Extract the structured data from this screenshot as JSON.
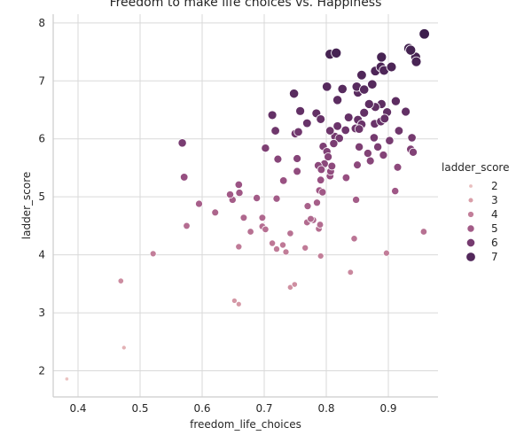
{
  "chart_data": {
    "type": "scatter",
    "title": "Freedom to make life choices vs. Happiness",
    "xlabel": "freedom_life_choices",
    "ylabel": "ladder_score",
    "xlim": [
      0.36,
      0.98
    ],
    "ylim": [
      1.55,
      8.15
    ],
    "xticks": [
      "0.4",
      "0.5",
      "0.6",
      "0.7",
      "0.8",
      "0.9"
    ],
    "yticks": [
      "2",
      "3",
      "4",
      "5",
      "6",
      "7",
      "8"
    ],
    "grid": true,
    "hue": "ladder_score",
    "size": "ladder_score",
    "legend": {
      "title": "ladder_score",
      "placement": "right",
      "entries": [
        "2",
        "3",
        "4",
        "5",
        "6",
        "7"
      ]
    },
    "points": [
      [
        0.382,
        1.86
      ],
      [
        0.474,
        2.4
      ],
      [
        0.469,
        3.55
      ],
      [
        0.521,
        4.02
      ],
      [
        0.652,
        3.21
      ],
      [
        0.659,
        3.15
      ],
      [
        0.742,
        3.44
      ],
      [
        0.749,
        3.49
      ],
      [
        0.839,
        3.7
      ],
      [
        0.897,
        4.03
      ],
      [
        0.957,
        4.4
      ],
      [
        0.575,
        4.5
      ],
      [
        0.621,
        4.73
      ],
      [
        0.595,
        4.88
      ],
      [
        0.649,
        4.95
      ],
      [
        0.645,
        5.04
      ],
      [
        0.66,
        5.07
      ],
      [
        0.659,
        5.21
      ],
      [
        0.659,
        4.14
      ],
      [
        0.667,
        4.64
      ],
      [
        0.678,
        4.4
      ],
      [
        0.688,
        4.98
      ],
      [
        0.697,
        4.64
      ],
      [
        0.697,
        4.49
      ],
      [
        0.702,
        4.44
      ],
      [
        0.713,
        4.2
      ],
      [
        0.72,
        4.1
      ],
      [
        0.73,
        4.17
      ],
      [
        0.735,
        4.05
      ],
      [
        0.742,
        4.37
      ],
      [
        0.766,
        4.12
      ],
      [
        0.791,
        3.98
      ],
      [
        0.769,
        4.56
      ],
      [
        0.779,
        4.6
      ],
      [
        0.788,
        4.45
      ],
      [
        0.79,
        4.52
      ],
      [
        0.77,
        4.84
      ],
      [
        0.785,
        4.9
      ],
      [
        0.789,
        5.11
      ],
      [
        0.794,
        5.08
      ],
      [
        0.72,
        4.97
      ],
      [
        0.731,
        5.28
      ],
      [
        0.845,
        4.28
      ],
      [
        0.848,
        4.95
      ],
      [
        0.791,
        5.29
      ],
      [
        0.806,
        5.36
      ],
      [
        0.85,
        5.55
      ],
      [
        0.853,
        5.86
      ],
      [
        0.832,
        5.33
      ],
      [
        0.871,
        5.62
      ],
      [
        0.902,
        5.97
      ],
      [
        0.867,
        5.75
      ],
      [
        0.877,
        6.02
      ],
      [
        0.883,
        5.86
      ],
      [
        0.892,
        5.72
      ],
      [
        0.911,
        5.1
      ],
      [
        0.915,
        5.51
      ],
      [
        0.936,
        5.82
      ],
      [
        0.94,
        5.77
      ],
      [
        0.938,
        6.02
      ],
      [
        0.917,
        6.14
      ],
      [
        0.928,
        6.47
      ],
      [
        0.912,
        6.65
      ],
      [
        0.889,
        6.6
      ],
      [
        0.878,
        6.26
      ],
      [
        0.898,
        6.46
      ],
      [
        0.879,
        6.55
      ],
      [
        0.869,
        6.6
      ],
      [
        0.861,
        6.45
      ],
      [
        0.851,
        6.33
      ],
      [
        0.857,
        6.25
      ],
      [
        0.847,
        6.18
      ],
      [
        0.853,
        6.17
      ],
      [
        0.831,
        6.15
      ],
      [
        0.814,
        6.04
      ],
      [
        0.821,
        6.01
      ],
      [
        0.812,
        5.92
      ],
      [
        0.795,
        5.87
      ],
      [
        0.801,
        5.78
      ],
      [
        0.803,
        5.69
      ],
      [
        0.797,
        5.57
      ],
      [
        0.787,
        5.54
      ],
      [
        0.792,
        5.47
      ],
      [
        0.807,
        5.44
      ],
      [
        0.753,
        5.44
      ],
      [
        0.753,
        5.66
      ],
      [
        0.722,
        5.65
      ],
      [
        0.702,
        5.84
      ],
      [
        0.718,
        6.14
      ],
      [
        0.75,
        6.09
      ],
      [
        0.755,
        6.12
      ],
      [
        0.769,
        6.27
      ],
      [
        0.784,
        6.44
      ],
      [
        0.791,
        6.34
      ],
      [
        0.806,
        6.14
      ],
      [
        0.818,
        6.22
      ],
      [
        0.836,
        6.37
      ],
      [
        0.888,
        6.3
      ],
      [
        0.894,
        6.35
      ],
      [
        0.713,
        6.41
      ],
      [
        0.748,
        6.78
      ],
      [
        0.758,
        6.48
      ],
      [
        0.801,
        6.9
      ],
      [
        0.818,
        6.67
      ],
      [
        0.826,
        6.86
      ],
      [
        0.851,
        6.8
      ],
      [
        0.849,
        6.9
      ],
      [
        0.874,
        6.94
      ],
      [
        0.857,
        7.1
      ],
      [
        0.879,
        7.17
      ],
      [
        0.888,
        7.24
      ],
      [
        0.893,
        7.18
      ],
      [
        0.889,
        7.41
      ],
      [
        0.905,
        7.24
      ],
      [
        0.933,
        7.56
      ],
      [
        0.944,
        7.41
      ],
      [
        0.945,
        7.33
      ],
      [
        0.936,
        7.53
      ],
      [
        0.958,
        7.81
      ],
      [
        0.806,
        7.46
      ],
      [
        0.568,
        5.93
      ],
      [
        0.571,
        5.34
      ],
      [
        0.816,
        7.48
      ],
      [
        0.809,
        5.53
      ],
      [
        0.861,
        6.85
      ],
      [
        0.775,
        4.62
      ]
    ]
  }
}
